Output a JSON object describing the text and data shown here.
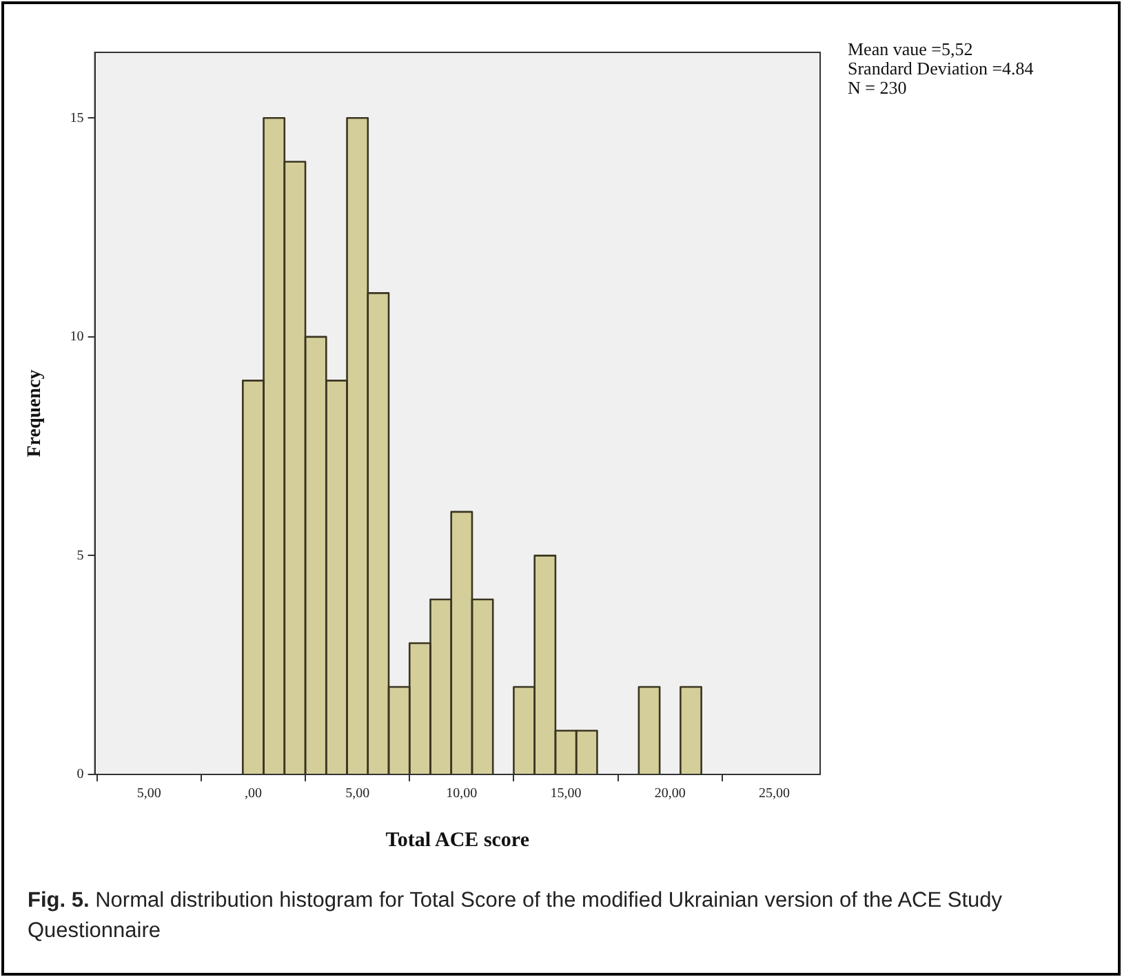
{
  "chart_data": {
    "type": "histogram",
    "xlabel": "Total ACE score",
    "ylabel": "Frequency",
    "bins": [
      -0.5,
      0.5,
      1.5,
      2.5,
      3.5,
      4.5,
      5.5,
      6.5,
      7.5,
      8.5,
      9.5,
      10.5,
      11.5,
      12.5,
      13.5,
      14.5,
      15.5,
      16.5,
      17.5,
      18.5,
      19.5,
      20.5,
      21.5
    ],
    "values": [
      9,
      15,
      14,
      10,
      9,
      15,
      11,
      2,
      3,
      4,
      6,
      4,
      0,
      2,
      5,
      1,
      1,
      0,
      0,
      2,
      0,
      2
    ],
    "color": "#d4cf9a",
    "xlim": [
      -7.6,
      27.2
    ],
    "xticks": [
      {
        "value": -5,
        "label": "5,00"
      },
      {
        "value": 0,
        "label": ",00"
      },
      {
        "value": 5,
        "label": "5,00"
      },
      {
        "value": 10,
        "label": "10,00"
      },
      {
        "value": 15,
        "label": "15,00"
      },
      {
        "value": 20,
        "label": "20,00"
      },
      {
        "value": 25,
        "label": "25,00"
      }
    ],
    "ylim": [
      0,
      16.5
    ],
    "yticks": [
      0,
      5,
      10,
      15
    ],
    "grid": false,
    "legend": false,
    "annotations": [
      "Mean vaue =5,52",
      "Srandard Deviation =4.84",
      "N = 230",
      "Fig. 5. Normal distribution histogram for Total Score of the modified Ukrainian version of the ACE Study Questionnaire"
    ]
  }
}
